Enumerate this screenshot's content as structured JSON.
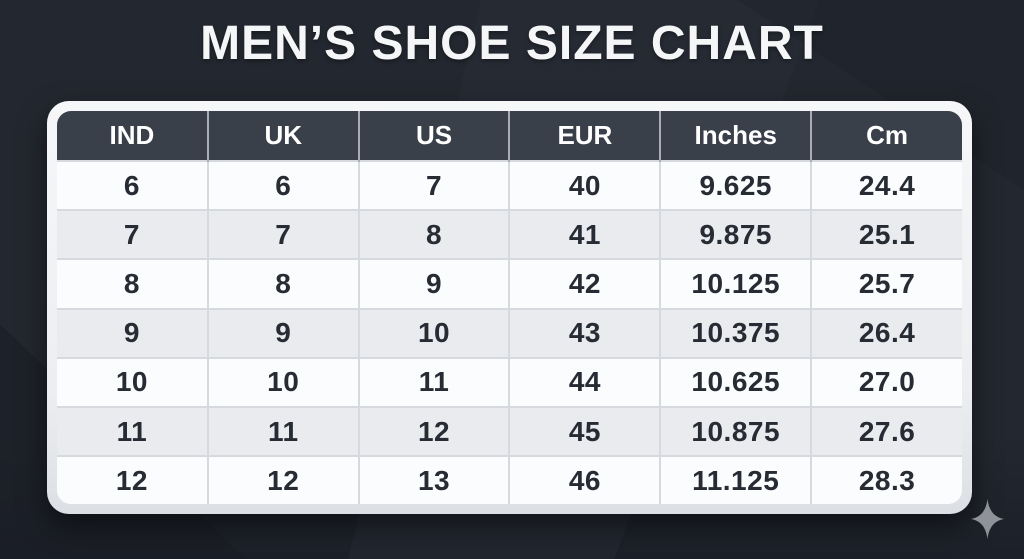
{
  "title": "MEN’S SHOE SIZE CHART",
  "chart_data": {
    "type": "table",
    "title": "MEN’S SHOE SIZE CHART",
    "columns": [
      "IND",
      "UK",
      "US",
      "EUR",
      "Inches",
      "Cm"
    ],
    "rows": [
      [
        "6",
        "6",
        "7",
        "40",
        "9.625",
        "24.4"
      ],
      [
        "7",
        "7",
        "8",
        "41",
        "9.875",
        "25.1"
      ],
      [
        "8",
        "8",
        "9",
        "42",
        "10.125",
        "25.7"
      ],
      [
        "9",
        "9",
        "10",
        "43",
        "10.375",
        "26.4"
      ],
      [
        "10",
        "10",
        "11",
        "44",
        "10.625",
        "27.0"
      ],
      [
        "11",
        "11",
        "12",
        "45",
        "10.875",
        "27.6"
      ],
      [
        "12",
        "12",
        "13",
        "46",
        "11.125",
        "28.3"
      ]
    ],
    "layout": {
      "header_style": "dark band, white bold text",
      "row_striping": "odd white, even light gray",
      "grid": "light gray 2px lines"
    }
  },
  "colors": {
    "page_background": "#23272f",
    "header_background": "#3a404a",
    "row_background": "#fbfcfd",
    "row_alt_background": "#e9ebef",
    "grid_line": "#d6d9de",
    "cell_text": "#272b33",
    "title_text": "#f5f6f8",
    "card_frame": "#eef0f3",
    "sparkle": "#8f9298"
  },
  "icons": {
    "sparkle": "four-pointed-star"
  }
}
